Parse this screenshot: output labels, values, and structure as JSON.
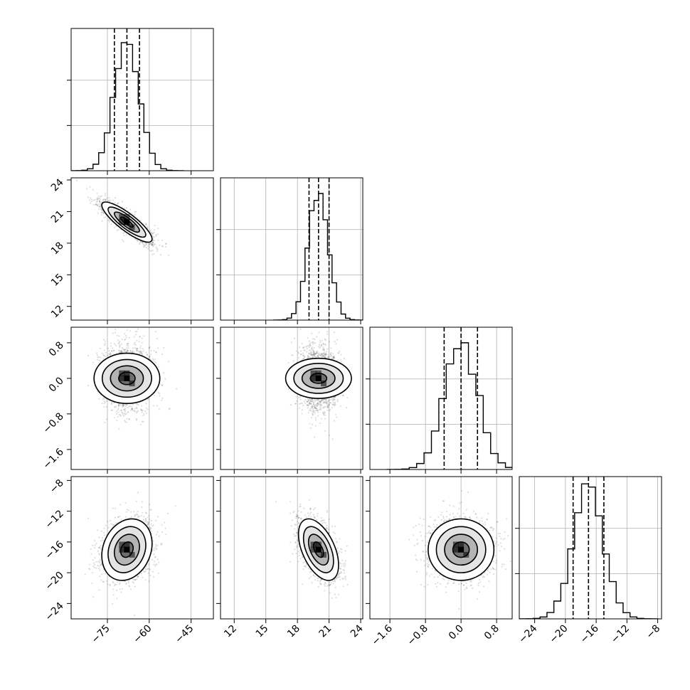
{
  "chart_data": {
    "type": "corner",
    "title": "",
    "parameters": [
      {
        "index": 0,
        "xlabel": "",
        "range": [
          -88,
          -37
        ],
        "ticks": [
          -75,
          -60,
          -45
        ],
        "tick_labels": [
          "−75",
          "−60",
          "−45"
        ],
        "median": -68,
        "q16": -72.5,
        "q84": -63.5,
        "sd": 4.5
      },
      {
        "index": 1,
        "xlabel": "",
        "range": [
          10.7,
          24.2
        ],
        "ticks": [
          12,
          15,
          18,
          21,
          24
        ],
        "tick_labels": [
          "12",
          "15",
          "18",
          "21",
          "24"
        ],
        "median": 20.0,
        "q16": 19.1,
        "q84": 21.0,
        "sd": 0.95
      },
      {
        "index": 2,
        "xlabel": "",
        "range": [
          -2.05,
          1.15
        ],
        "ticks": [
          -1.6,
          -0.8,
          0.0,
          0.8
        ],
        "tick_labels": [
          "−1.6",
          "−0.8",
          "0.0",
          "0.8"
        ],
        "median": 0.0,
        "q16": -0.38,
        "q84": 0.37,
        "sd": 0.37
      },
      {
        "index": 3,
        "xlabel": "",
        "range": [
          -26,
          -7.5
        ],
        "ticks": [
          -24,
          -20,
          -16,
          -12,
          -8
        ],
        "tick_labels": [
          "−24",
          "−20",
          "−16",
          "−12",
          "−8"
        ],
        "median": -17,
        "q16": -19,
        "q84": -15,
        "sd": 2.0
      }
    ],
    "pairs": [
      {
        "x": 0,
        "y": 1,
        "correlation": -0.85,
        "peak": [
          -68,
          20.0
        ]
      },
      {
        "x": 0,
        "y": 2,
        "correlation": 0.0,
        "peak": [
          -68,
          -0.05
        ]
      },
      {
        "x": 1,
        "y": 2,
        "correlation": 0.0,
        "peak": [
          20.0,
          -0.05
        ]
      },
      {
        "x": 0,
        "y": 3,
        "correlation": 0.2,
        "peak": [
          -68,
          -17
        ]
      },
      {
        "x": 1,
        "y": 3,
        "correlation": -0.5,
        "peak": [
          20.0,
          -17
        ]
      },
      {
        "x": 2,
        "y": 3,
        "correlation": 0.0,
        "peak": [
          0.0,
          -17
        ]
      }
    ],
    "histogram": {
      "bins": 20,
      "peak_count": 1.0,
      "ylim": [
        0,
        1.1
      ],
      "hidden_ticks": [
        0.35,
        0.7
      ]
    },
    "density_levels_sigma": [
      0.5,
      1.0,
      1.5,
      2.0
    ],
    "n_samples_drawn": 1800,
    "quantiles": [
      0.16,
      0.5,
      0.84
    ],
    "grid": true,
    "legend": "none"
  }
}
